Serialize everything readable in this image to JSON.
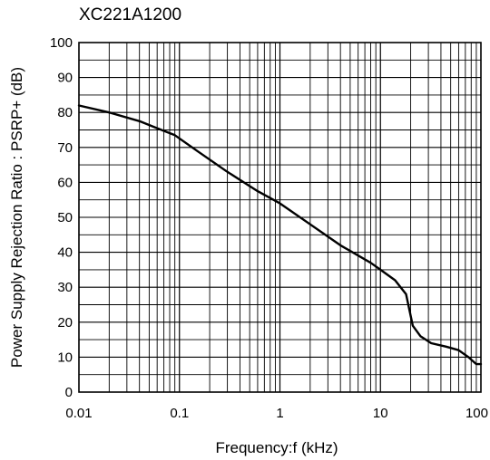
{
  "chart_data": {
    "type": "line",
    "title": "XC221A1200",
    "xlabel": "Frequency:f (kHz)",
    "ylabel": "Power Supply Rejection Ratio : PSRP+ (dB)",
    "xscale": "log",
    "xlim": [
      0.01,
      100
    ],
    "ylim": [
      0,
      100
    ],
    "x_ticks": [
      0.01,
      0.1,
      1,
      10,
      100
    ],
    "x_tick_labels": [
      "0.01",
      "0.1",
      "1",
      "10",
      "100"
    ],
    "y_ticks": [
      0,
      10,
      20,
      30,
      40,
      50,
      60,
      70,
      80,
      90,
      100
    ],
    "y_tick_labels": [
      "0",
      "10",
      "20",
      "30",
      "40",
      "50",
      "60",
      "70",
      "80",
      "90",
      "100"
    ],
    "grid": true,
    "series": [
      {
        "x": [
          0.01,
          0.02,
          0.04,
          0.06,
          0.09,
          0.15,
          0.3,
          0.6,
          1,
          2,
          4,
          8,
          10,
          14,
          18,
          21,
          25,
          32,
          45,
          60,
          75,
          90,
          100
        ],
        "y": [
          82,
          80,
          77.5,
          75.5,
          73.5,
          69,
          63,
          57.5,
          54,
          48,
          42,
          37,
          35,
          32,
          28,
          19,
          16,
          14,
          13,
          12,
          10,
          8,
          8
        ]
      }
    ],
    "color": "#000000"
  }
}
